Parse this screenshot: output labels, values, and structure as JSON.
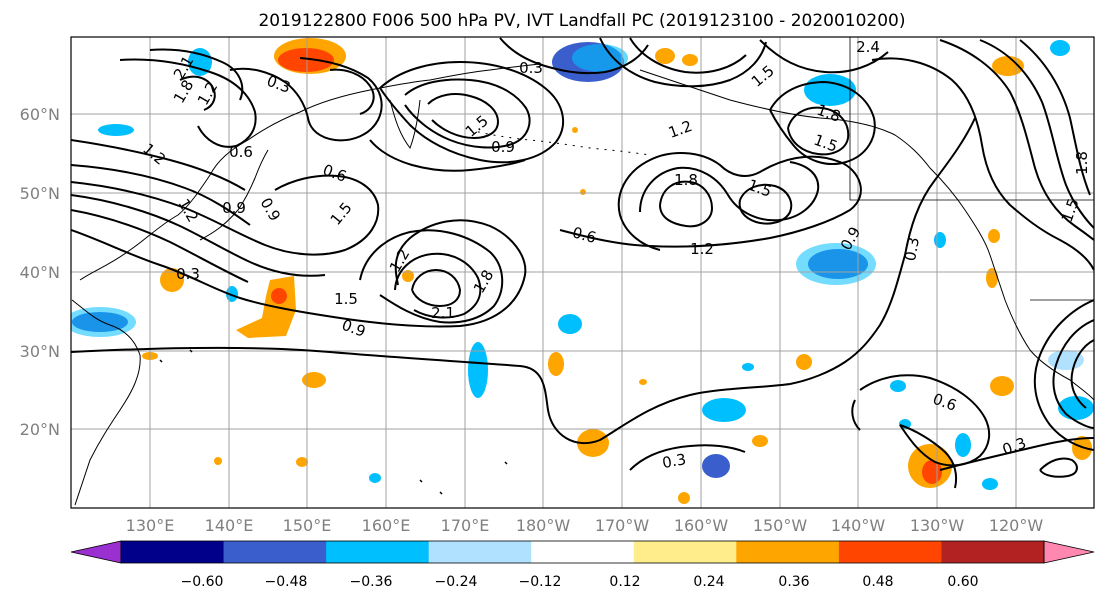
{
  "title": "2019122800 F006 500 hPa PV, IVT Landfall PC (2019123100 - 2020010200)",
  "lat_labels": [
    "60°N",
    "50°N",
    "40°N",
    "30°N",
    "20°N"
  ],
  "lon_labels": [
    "130°E",
    "140°E",
    "150°E",
    "160°E",
    "170°E",
    "180°W",
    "170°W",
    "160°W",
    "150°W",
    "140°W",
    "130°W",
    "120°W"
  ],
  "colorbar": {
    "ticks": [
      "−0.60",
      "−0.48",
      "−0.36",
      "−0.24",
      "−0.12",
      "0.12",
      "0.24",
      "0.36",
      "0.48",
      "0.60"
    ],
    "colors": [
      "#9b30d0",
      "#00008b",
      "#3a5fcd",
      "#00bfff",
      "#b0e2ff",
      "#ffffff",
      "#ffec8b",
      "#ffa500",
      "#ff4500",
      "#b22222",
      "#ff88b0"
    ]
  },
  "contour_labels": [
    "2.1",
    "1.8",
    "1.2",
    "0.3",
    "0.3",
    "1.5",
    "0.9",
    "1.2",
    "2.4",
    "1.5",
    "1.2",
    "0.9",
    "1.8",
    "1.5",
    "1.2",
    "0.6",
    "0.9",
    "1.5",
    "1.8",
    "1.5",
    "1.2",
    "0.6",
    "0.9",
    "0.3",
    "0.3",
    "1.2",
    "1.5",
    "2.1",
    "1.8",
    "0.9",
    "0.6",
    "0.3",
    "0.3",
    "0.6",
    "1.8",
    "1.5"
  ]
}
